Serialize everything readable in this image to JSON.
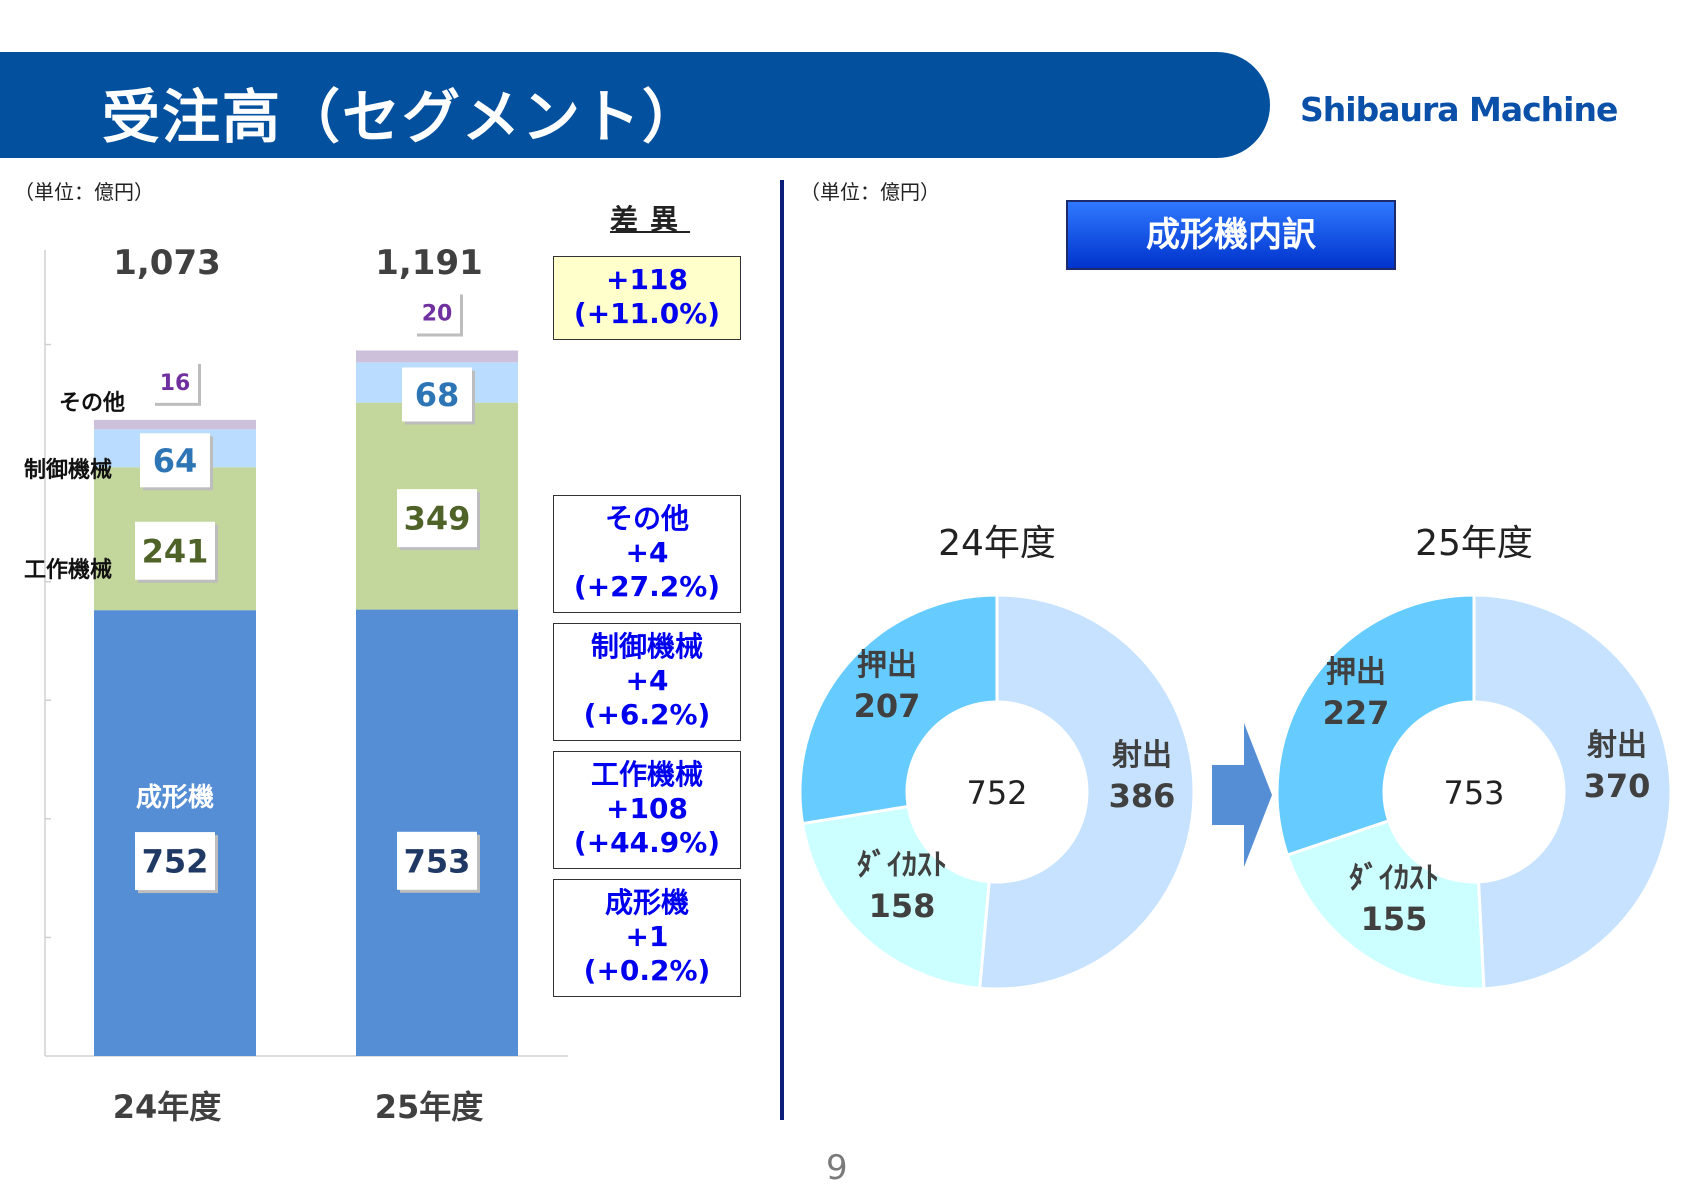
{
  "header": {
    "title": "受注高（セグメント）",
    "logo": "Shibaura Machine"
  },
  "unit_left": "（単位：億円）",
  "unit_right": "（単位：億円）",
  "diff": {
    "heading": "差異",
    "total": {
      "value": "+118",
      "pct": "(+11.0%)"
    },
    "items": [
      {
        "label": "その他",
        "value": "+4",
        "pct": "(+27.2%)"
      },
      {
        "label": "制御機械",
        "value": "+4",
        "pct": "(+6.2%)"
      },
      {
        "label": "工作機械",
        "value": "+108",
        "pct": "(+44.9%)"
      },
      {
        "label": "成形機",
        "value": "+1",
        "pct": "(+0.2%)"
      }
    ]
  },
  "breakdown_title": "成形機内訳",
  "page_number": "9",
  "colors": {
    "molding": "#558ED5",
    "machine_tool": "#C3D69B",
    "control": "#B9DCFF",
    "other": "#CCC0DA",
    "inject": "#C6E2FF",
    "extrude": "#66CCFF",
    "diecast": "#CCFFFF"
  },
  "chart_data": [
    {
      "type": "bar",
      "stacked": true,
      "categories": [
        "24年度",
        "25年度"
      ],
      "series": [
        {
          "name": "成形機",
          "values": [
            752,
            753
          ]
        },
        {
          "name": "工作機械",
          "values": [
            241,
            349
          ]
        },
        {
          "name": "制御機械",
          "values": [
            64,
            68
          ]
        },
        {
          "name": "その他",
          "values": [
            16,
            20
          ]
        }
      ],
      "series_labels": {
        "left": [
          "工作機械",
          "制御機械",
          "その他"
        ],
        "inside": "成形機"
      },
      "totals": [
        "1,073",
        "1,191"
      ],
      "ylim": [
        0,
        1400
      ]
    },
    {
      "type": "pie",
      "donut": true,
      "title": "24年度",
      "center_label": "752",
      "slices": [
        {
          "name": "射出",
          "value": 386
        },
        {
          "name": "ﾀﾞｲｶｽﾄ",
          "value": 158
        },
        {
          "name": "押出",
          "value": 207
        }
      ]
    },
    {
      "type": "pie",
      "donut": true,
      "title": "25年度",
      "center_label": "753",
      "slices": [
        {
          "name": "射出",
          "value": 370
        },
        {
          "name": "ﾀﾞｲｶｽﾄ",
          "value": 155
        },
        {
          "name": "押出",
          "value": 227
        }
      ]
    }
  ]
}
